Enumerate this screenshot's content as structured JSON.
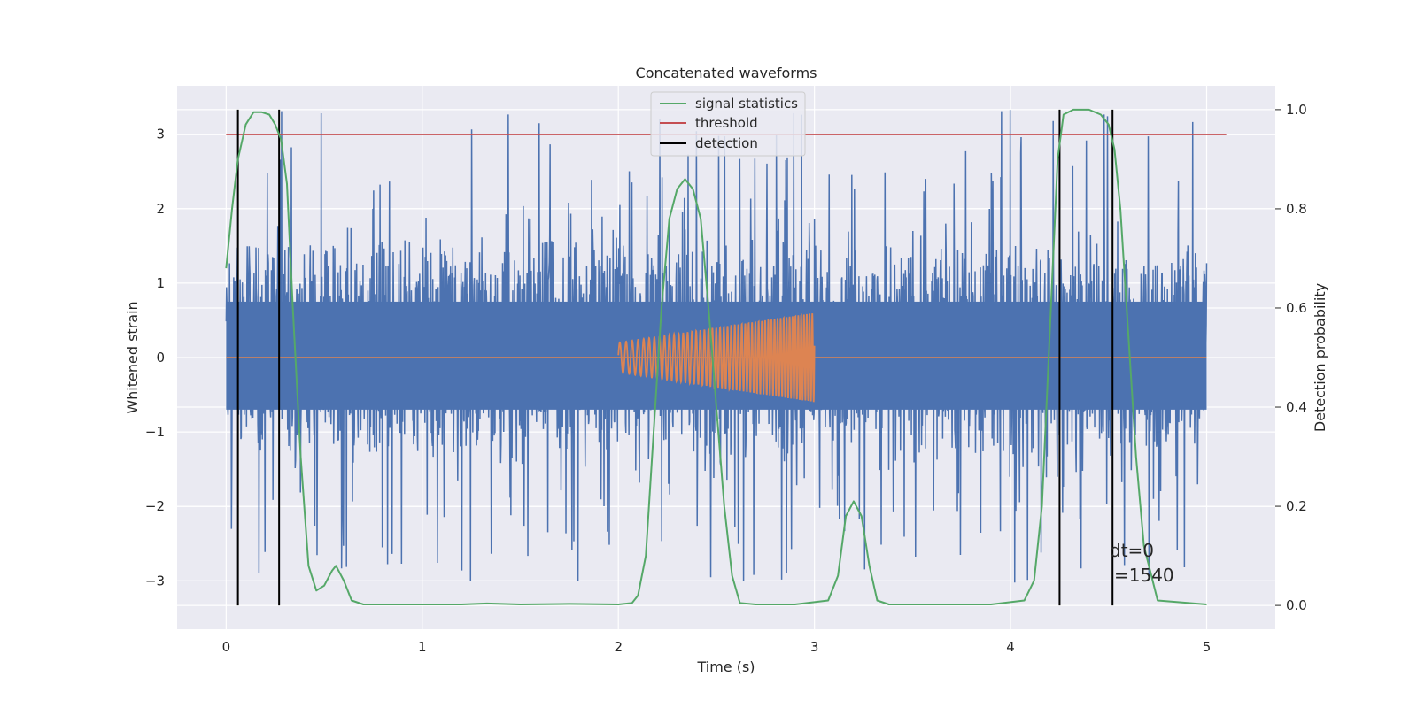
{
  "chart_data": {
    "type": "line",
    "title": "Concatenated waveforms",
    "xlabel": "Time (s)",
    "ylabel": "Whitened strain",
    "ylabel_right": "Detection probability",
    "xlim": [
      -0.25,
      5.35
    ],
    "ylim": [
      -3.65,
      3.65
    ],
    "ylim_right": [
      -0.048,
      1.048
    ],
    "xticks": [
      "0",
      "1",
      "2",
      "3",
      "4",
      "5"
    ],
    "yticks": [
      "−3",
      "−2",
      "−1",
      "0",
      "1",
      "2",
      "3"
    ],
    "yticks_right": [
      "0.0",
      "0.2",
      "0.4",
      "0.6",
      "0.8",
      "1.0"
    ],
    "grid": true,
    "legend_position": "top-center",
    "legend": [
      {
        "label": "signal statistics",
        "color": "#55a868"
      },
      {
        "label": "threshold",
        "color": "#c44e52"
      },
      {
        "label": "detection",
        "color": "#000000"
      }
    ],
    "colors": {
      "strain": "#4c72b0",
      "injection": "#dd8452",
      "statistics": "#55a868",
      "threshold": "#c44e52",
      "detection": "#000000",
      "background": "#eaeaf2"
    },
    "strain_noise": {
      "x_range": [
        0,
        5
      ],
      "typical_range": [
        -2.2,
        2.8
      ],
      "extreme_range": [
        -3.1,
        3.55
      ]
    },
    "injection": {
      "x_range": [
        2,
        3
      ],
      "amplitude_start": 0.2,
      "amplitude_end": 0.6
    },
    "threshold_value": 0.95,
    "threshold_x_range": [
      0,
      5.1
    ],
    "detections_x": [
      0.06,
      0.27,
      4.25,
      4.52
    ],
    "signal_statistics": {
      "x": [
        0.0,
        0.03,
        0.06,
        0.1,
        0.14,
        0.18,
        0.22,
        0.25,
        0.28,
        0.31,
        0.34,
        0.38,
        0.42,
        0.46,
        0.5,
        0.54,
        0.56,
        0.6,
        0.64,
        0.7,
        0.9,
        1.2,
        1.33,
        1.5,
        1.75,
        2.0,
        2.07,
        2.1,
        2.14,
        2.18,
        2.22,
        2.26,
        2.3,
        2.34,
        2.38,
        2.42,
        2.46,
        2.5,
        2.54,
        2.58,
        2.62,
        2.7,
        2.9,
        3.07,
        3.12,
        3.16,
        3.2,
        3.24,
        3.28,
        3.32,
        3.38,
        3.6,
        3.9,
        4.07,
        4.12,
        4.16,
        4.2,
        4.24,
        4.27,
        4.32,
        4.4,
        4.46,
        4.5,
        4.53,
        4.56,
        4.6,
        4.64,
        4.68,
        4.75,
        5.0
      ],
      "y": [
        0.68,
        0.8,
        0.9,
        0.97,
        0.995,
        0.995,
        0.99,
        0.97,
        0.94,
        0.85,
        0.6,
        0.3,
        0.08,
        0.03,
        0.04,
        0.07,
        0.08,
        0.05,
        0.01,
        0.002,
        0.002,
        0.002,
        0.004,
        0.002,
        0.003,
        0.002,
        0.005,
        0.02,
        0.1,
        0.35,
        0.6,
        0.78,
        0.84,
        0.86,
        0.84,
        0.78,
        0.6,
        0.4,
        0.2,
        0.06,
        0.005,
        0.002,
        0.002,
        0.01,
        0.06,
        0.18,
        0.21,
        0.18,
        0.08,
        0.01,
        0.002,
        0.002,
        0.002,
        0.01,
        0.05,
        0.2,
        0.55,
        0.9,
        0.99,
        1.0,
        1.0,
        0.99,
        0.97,
        0.92,
        0.8,
        0.55,
        0.3,
        0.12,
        0.01,
        0.002
      ]
    },
    "annotation": {
      "line1": "dt=0",
      "line2": "=1540"
    }
  }
}
